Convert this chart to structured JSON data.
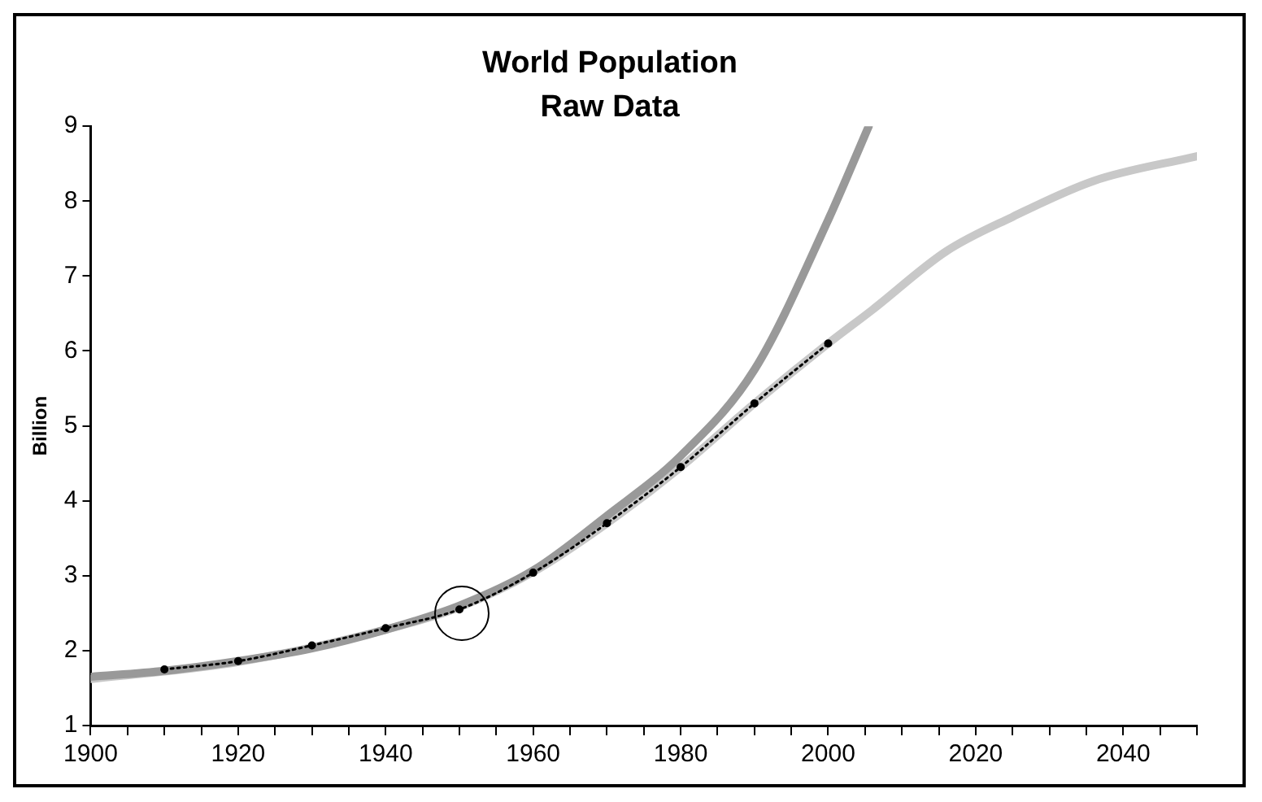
{
  "chart_data": {
    "type": "line",
    "title": "World Population",
    "subtitle": "Raw Data",
    "ylabel": "Billion",
    "xlim": [
      1900,
      2050
    ],
    "xticks": [
      1900,
      {
        "value": 1905,
        "label": null
      },
      {
        "value": 1910,
        "label": null
      },
      {
        "value": 1915,
        "label": null
      },
      1920,
      {
        "value": 1925,
        "label": null
      },
      {
        "value": 1930,
        "label": null
      },
      {
        "value": 1935,
        "label": null
      },
      1940,
      {
        "value": 1945,
        "label": null
      },
      {
        "value": 1950,
        "label": null
      },
      {
        "value": 1955,
        "label": null
      },
      1960,
      {
        "value": 1965,
        "label": null
      },
      {
        "value": 1970,
        "label": null
      },
      {
        "value": 1975,
        "label": null
      },
      1980,
      {
        "value": 1985,
        "label": null
      },
      {
        "value": 1990,
        "label": null
      },
      {
        "value": 1995,
        "label": null
      },
      2000,
      {
        "value": 2005,
        "label": null
      },
      {
        "value": 2010,
        "label": null
      },
      {
        "value": 2015,
        "label": null
      },
      2020,
      {
        "value": 2025,
        "label": null
      },
      {
        "value": 2030,
        "label": null
      },
      {
        "value": 2035,
        "label": null
      },
      2040,
      {
        "value": 2045,
        "label": null
      },
      {
        "value": 2050,
        "label": null
      }
    ],
    "ylim": [
      1,
      9
    ],
    "yticks": [
      1,
      2,
      3,
      4,
      5,
      6,
      7,
      8,
      9
    ],
    "grid": false,
    "legend": false,
    "series": [
      {
        "color": "#c8c8c8",
        "marker": "none",
        "line_style": "solid",
        "x": [
          1900,
          1920,
          1940,
          1950,
          1960,
          1970,
          1980,
          1990,
          2000,
          2006,
          2016,
          2025,
          2036,
          2050
        ],
        "values": [
          1.62,
          1.85,
          2.28,
          2.58,
          3.05,
          3.7,
          4.45,
          5.3,
          6.1,
          6.55,
          7.33,
          7.79,
          8.27,
          8.6
        ]
      },
      {
        "color": "#999999",
        "marker": "none",
        "line_style": "solid",
        "x": [
          1900,
          1910,
          1920,
          1930,
          1940,
          1950,
          1960,
          1970,
          1980,
          1990,
          2000,
          2005.5
        ],
        "values": [
          1.65,
          1.73,
          1.86,
          2.03,
          2.28,
          2.6,
          3.07,
          3.8,
          4.6,
          5.75,
          7.75,
          9
        ]
      },
      {
        "color": "#000000",
        "marker": "circle",
        "line_style": "dotted",
        "x": [
          1910,
          1920,
          1930,
          1940,
          1950,
          1960,
          1970,
          1980,
          1990,
          2000
        ],
        "values": [
          1.75,
          1.86,
          2.07,
          2.3,
          2.55,
          3.04,
          3.7,
          4.45,
          5.3,
          6.1
        ]
      }
    ]
  }
}
